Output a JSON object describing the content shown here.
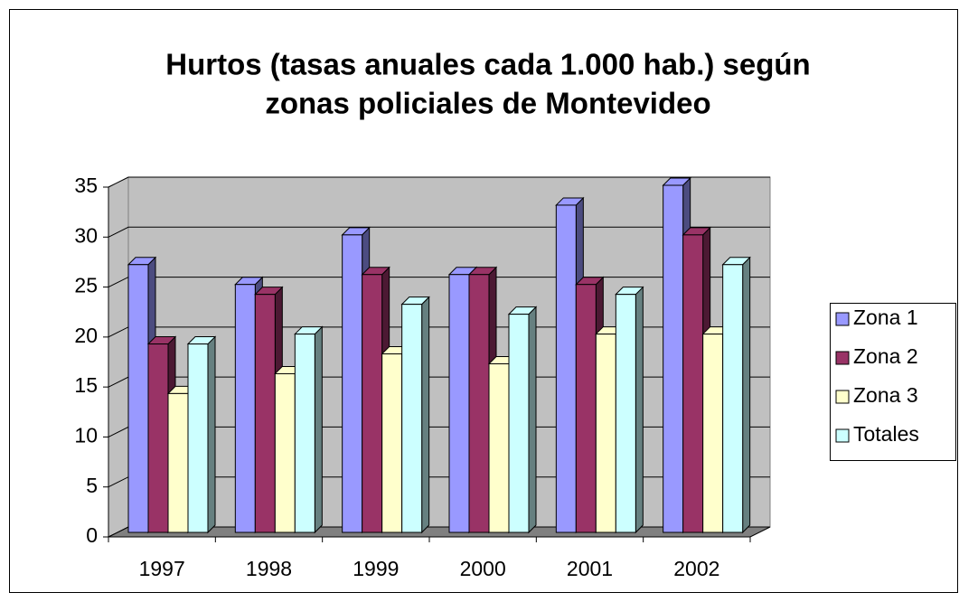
{
  "chart_data": {
    "type": "bar3d",
    "title": [
      "Hurtos (tasas anuales cada 1.000 hab.) según",
      "zonas policiales de Montevideo"
    ],
    "categories": [
      "1997",
      "1998",
      "1999",
      "2000",
      "2001",
      "2002"
    ],
    "series": [
      {
        "name": "Zona 1",
        "color": "#9999ff",
        "values": [
          27,
          25,
          30,
          26,
          33,
          35
        ]
      },
      {
        "name": "Zona 2",
        "color": "#993366",
        "values": [
          19,
          24,
          26,
          26,
          25,
          30
        ]
      },
      {
        "name": "Zona 3",
        "color": "#ffffcc",
        "values": [
          14,
          16,
          18,
          17,
          20,
          20
        ]
      },
      {
        "name": "Totales",
        "color": "#ccffff",
        "values": [
          19,
          20,
          23,
          22,
          24,
          27
        ]
      }
    ],
    "ylim": [
      0,
      35
    ],
    "yticks": [
      0,
      5,
      10,
      15,
      20,
      25,
      30,
      35
    ],
    "grid": true,
    "legend": "right"
  }
}
